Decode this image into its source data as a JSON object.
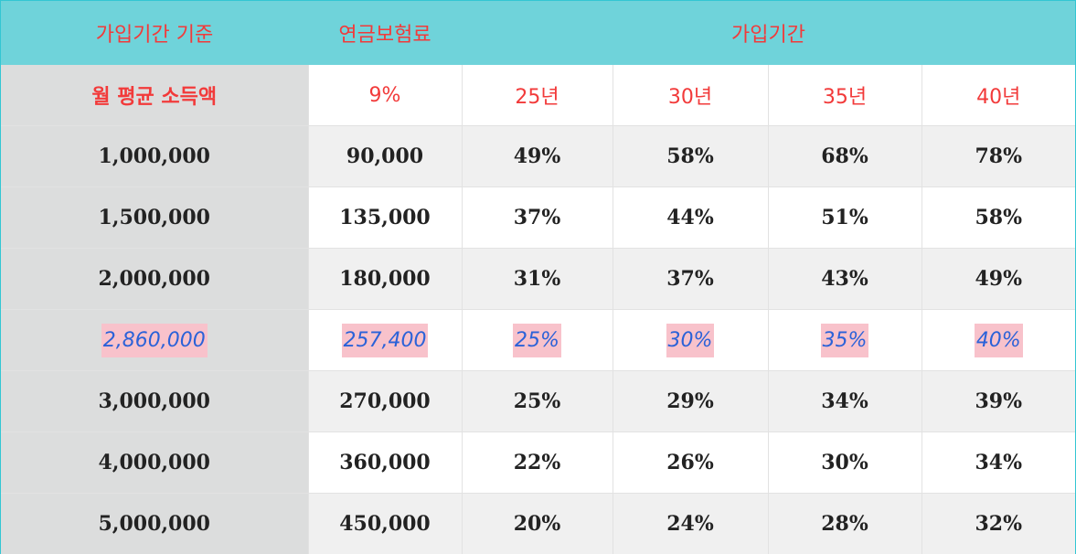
{
  "header": {
    "col_basis": "가입기간 기준",
    "col_premium": "연금보험료",
    "col_period": "가입기간"
  },
  "subheader": {
    "income": "월 평균 소득액",
    "rate": "9%",
    "periods": [
      "25년",
      "30년",
      "35년",
      "40년"
    ]
  },
  "rows": [
    {
      "income": "1,000,000",
      "premium": "90,000",
      "values": [
        "49%",
        "58%",
        "68%",
        "78%"
      ]
    },
    {
      "income": "1,500,000",
      "premium": "135,000",
      "values": [
        "37%",
        "44%",
        "51%",
        "58%"
      ]
    },
    {
      "income": "2,000,000",
      "premium": "180,000",
      "values": [
        "31%",
        "37%",
        "43%",
        "49%"
      ]
    },
    {
      "income": "2,860,000",
      "premium": "257,400",
      "values": [
        "25%",
        "30%",
        "35%",
        "40%"
      ]
    },
    {
      "income": "3,000,000",
      "premium": "270,000",
      "values": [
        "25%",
        "29%",
        "34%",
        "39%"
      ]
    },
    {
      "income": "4,000,000",
      "premium": "360,000",
      "values": [
        "22%",
        "26%",
        "30%",
        "34%"
      ]
    },
    {
      "income": "5,000,000",
      "premium": "450,000",
      "values": [
        "20%",
        "24%",
        "28%",
        "32%"
      ]
    }
  ],
  "highlight_row_index": 3,
  "colors": {
    "header_bg": "#6fd3da",
    "header_text": "#f23a3a",
    "highlight_text": "#2b62d8",
    "highlight_mark": "#f8c2cb",
    "label_col_bg": "#dcdddd"
  }
}
